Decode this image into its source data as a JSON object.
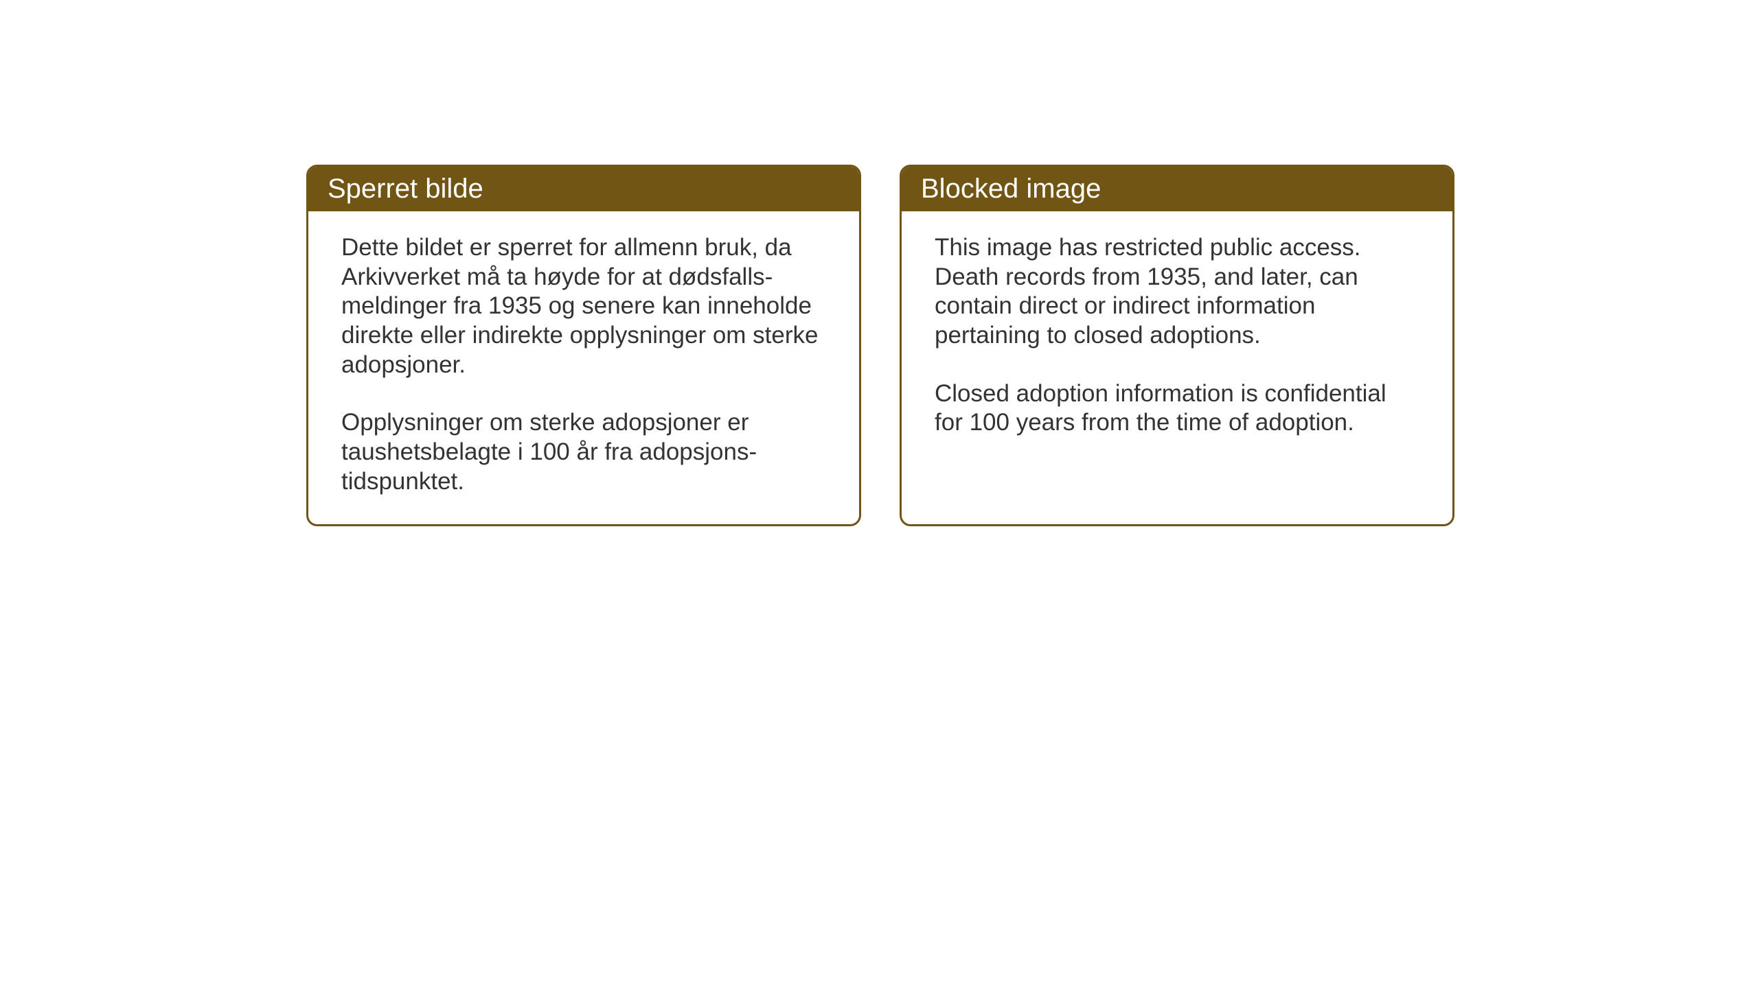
{
  "cards": {
    "norwegian": {
      "title": "Sperret bilde",
      "paragraph1": "Dette bildet er sperret for allmenn bruk, da Arkivverket må ta høyde for at dødsfalls-meldinger fra 1935 og senere kan inneholde direkte eller indirekte opplysninger om sterke adopsjoner.",
      "paragraph2": "Opplysninger om sterke adopsjoner er taushetsbelagte i 100 år fra adopsjons-tidspunktet."
    },
    "english": {
      "title": "Blocked image",
      "paragraph1": "This image has restricted public access. Death records from 1935, and later, can contain direct or indirect information pertaining to closed adoptions.",
      "paragraph2": "Closed adoption information is confidential for 100 years from the time of adoption."
    }
  },
  "styling": {
    "header_background": "#705514",
    "header_text_color": "#ffffff",
    "border_color": "#705514",
    "body_text_color": "#333333",
    "page_background": "#ffffff",
    "header_fontsize": 40,
    "body_fontsize": 35,
    "border_radius": 16,
    "border_width": 3
  }
}
